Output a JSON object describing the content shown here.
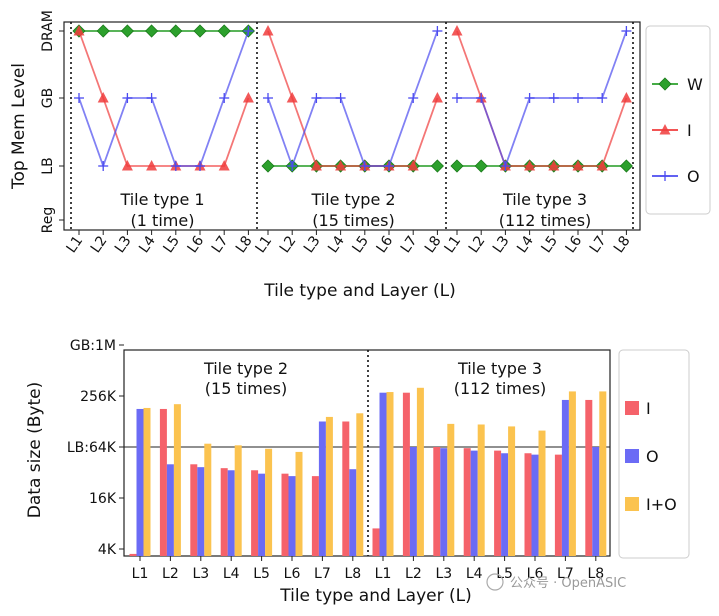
{
  "chart_data": [
    {
      "type": "line",
      "xlabel": "Tile type and Layer (L)",
      "ylabel": "Top Mem Level",
      "y_levels": [
        "Reg",
        "LB",
        "GB",
        "DRAM"
      ],
      "panels": [
        {
          "annotation": [
            "Tile type 1",
            "(1 time)"
          ],
          "x": [
            "L1",
            "L2",
            "L3",
            "L4",
            "L5",
            "L6",
            "L7",
            "L8"
          ]
        },
        {
          "annotation": [
            "Tile type 2",
            "(15 times)"
          ],
          "x": [
            "L1",
            "L2",
            "L3",
            "L4",
            "L5",
            "L6",
            "L7",
            "L8"
          ]
        },
        {
          "annotation": [
            "Tile type 3",
            "(112 times)"
          ],
          "x": [
            "L1",
            "L2",
            "L3",
            "L4",
            "L5",
            "L6",
            "L7",
            "L8"
          ]
        }
      ],
      "series": [
        {
          "name": "W",
          "color": "#2ca02c",
          "marker": "diamond",
          "values": [
            [
              3,
              3,
              3,
              3,
              3,
              3,
              3,
              3
            ],
            [
              1,
              1,
              1,
              1,
              1,
              1,
              1,
              1
            ],
            [
              1,
              1,
              1,
              1,
              1,
              1,
              1,
              1
            ]
          ]
        },
        {
          "name": "I",
          "color": "#f03c3c",
          "marker": "triangle",
          "values": [
            [
              3,
              2,
              1,
              1,
              1,
              1,
              1,
              2
            ],
            [
              3,
              2,
              1,
              1,
              1,
              1,
              1,
              2
            ],
            [
              3,
              2,
              1,
              1,
              1,
              1,
              1,
              2
            ]
          ]
        },
        {
          "name": "O",
          "color": "#4b4bf0",
          "marker": "plus",
          "values": [
            [
              2,
              1,
              2,
              2,
              1,
              1,
              2,
              3
            ],
            [
              2,
              1,
              2,
              2,
              1,
              1,
              2,
              3
            ],
            [
              2,
              2,
              1,
              2,
              2,
              2,
              2,
              3
            ]
          ]
        }
      ],
      "grid": false,
      "legend": "right"
    },
    {
      "type": "bar",
      "xlabel": "Tile type and Layer (L)",
      "ylabel": "Data size (Byte)",
      "yscale": "log2",
      "y_ticks": [
        "4K",
        "16K",
        "LB:64K",
        "256K",
        "GB:1M"
      ],
      "reference_line": "LB:64K",
      "panels": [
        {
          "annotation": [
            "Tile type 2",
            "(15 times)"
          ],
          "categories": [
            "L1",
            "L2",
            "L3",
            "L4",
            "L5",
            "L6",
            "L7",
            "L8"
          ]
        },
        {
          "annotation": [
            "Tile type 3",
            "(112 times)"
          ],
          "categories": [
            "L1",
            "L2",
            "L3",
            "L4",
            "L5",
            "L6",
            "L7",
            "L8"
          ]
        }
      ],
      "series_units": "KB",
      "series": [
        {
          "name": "I",
          "color": "#f5626a",
          "values": [
            [
              3.5,
              180,
              40,
              36,
              34,
              31,
              29,
              128
            ],
            [
              7,
              280,
              64,
              62,
              58,
              54,
              52,
              230
            ]
          ]
        },
        {
          "name": "O",
          "color": "#6b6bf5",
          "values": [
            [
              180,
              40,
              37,
              34,
              31,
              29,
              128,
              35
            ],
            [
              280,
              64,
              62,
              58,
              54,
              52,
              230,
              64
            ]
          ]
        },
        {
          "name": "I+O",
          "color": "#fbc34f",
          "values": [
            [
              185,
              205,
              70,
              67,
              61,
              56,
              145,
              160
            ],
            [
              285,
              320,
              120,
              118,
              112,
              100,
              290,
              290
            ]
          ]
        }
      ],
      "grid": false,
      "legend": "right"
    }
  ],
  "watermark": "公众号 · OpenASIC"
}
